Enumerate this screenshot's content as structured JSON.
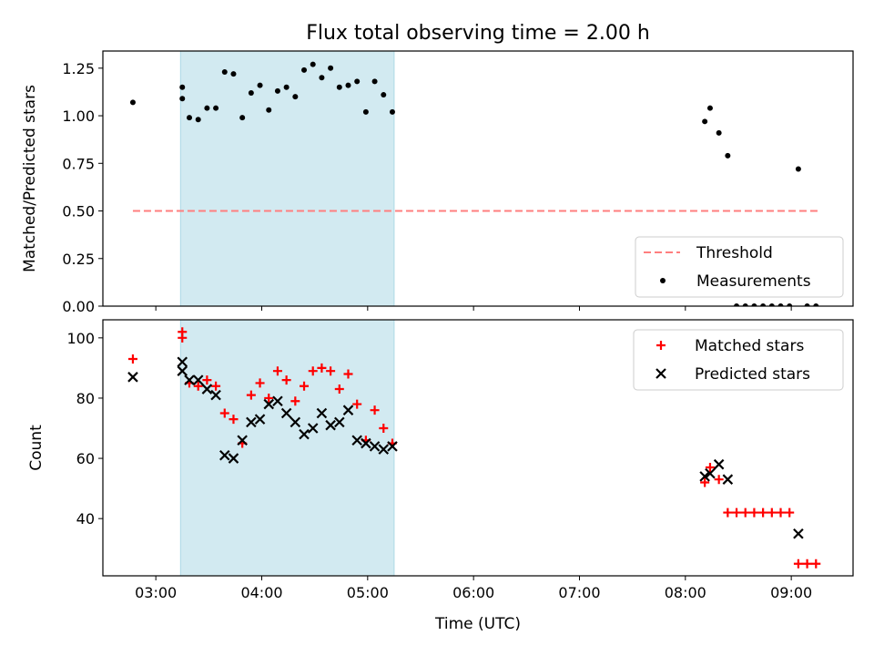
{
  "chart_data": [
    {
      "type": "scatter",
      "title": "Flux total observing time = 2.00 h",
      "xlabel": "",
      "ylabel": "Matched/Predicted stars",
      "xlim": [
        "02:30",
        "09:35"
      ],
      "ylim": [
        0,
        1.34
      ],
      "y_ticks": [
        "0.00",
        "0.25",
        "0.50",
        "0.75",
        "1.00",
        "1.25"
      ],
      "x_ticks": [
        "03:00",
        "04:00",
        "05:00",
        "06:00",
        "07:00",
        "08:00",
        "09:00"
      ],
      "x_tick_labels_visible": false,
      "shaded_interval": {
        "start": "03:14",
        "end": "05:15",
        "color": "#add8e6"
      },
      "legend": {
        "placement": "lower right",
        "entries": [
          "Threshold",
          "Measurements"
        ]
      },
      "series": [
        {
          "name": "Threshold",
          "kind": "dashed-line",
          "color": "#ff7f7f",
          "points": [
            {
              "x": "02:47",
              "y": 0.5
            },
            {
              "x": "09:15",
              "y": 0.5
            }
          ]
        },
        {
          "name": "Measurements",
          "kind": "dot",
          "color": "#000000",
          "points": [
            {
              "x": "02:47",
              "y": 1.07
            },
            {
              "x": "03:15",
              "y": 1.15
            },
            {
              "x": "03:15",
              "y": 1.09
            },
            {
              "x": "03:19",
              "y": 0.99
            },
            {
              "x": "03:24",
              "y": 0.98
            },
            {
              "x": "03:29",
              "y": 1.04
            },
            {
              "x": "03:34",
              "y": 1.04
            },
            {
              "x": "03:39",
              "y": 1.23
            },
            {
              "x": "03:44",
              "y": 1.22
            },
            {
              "x": "03:49",
              "y": 0.99
            },
            {
              "x": "03:54",
              "y": 1.12
            },
            {
              "x": "03:59",
              "y": 1.16
            },
            {
              "x": "04:04",
              "y": 1.03
            },
            {
              "x": "04:09",
              "y": 1.13
            },
            {
              "x": "04:14",
              "y": 1.15
            },
            {
              "x": "04:19",
              "y": 1.1
            },
            {
              "x": "04:24",
              "y": 1.24
            },
            {
              "x": "04:29",
              "y": 1.27
            },
            {
              "x": "04:34",
              "y": 1.2
            },
            {
              "x": "04:39",
              "y": 1.25
            },
            {
              "x": "04:44",
              "y": 1.15
            },
            {
              "x": "04:49",
              "y": 1.16
            },
            {
              "x": "04:54",
              "y": 1.18
            },
            {
              "x": "04:59",
              "y": 1.02
            },
            {
              "x": "05:04",
              "y": 1.18
            },
            {
              "x": "05:09",
              "y": 1.11
            },
            {
              "x": "05:14",
              "y": 1.02
            },
            {
              "x": "08:11",
              "y": 0.97
            },
            {
              "x": "08:14",
              "y": 1.04
            },
            {
              "x": "08:19",
              "y": 0.91
            },
            {
              "x": "08:24",
              "y": 0.79
            },
            {
              "x": "08:29",
              "y": 0.0
            },
            {
              "x": "08:34",
              "y": 0.0
            },
            {
              "x": "08:39",
              "y": 0.0
            },
            {
              "x": "08:44",
              "y": 0.0
            },
            {
              "x": "08:49",
              "y": 0.0
            },
            {
              "x": "08:54",
              "y": 0.0
            },
            {
              "x": "08:59",
              "y": 0.0
            },
            {
              "x": "09:04",
              "y": 0.72
            },
            {
              "x": "09:09",
              "y": 0.0
            },
            {
              "x": "09:14",
              "y": 0.0
            }
          ]
        }
      ]
    },
    {
      "type": "scatter",
      "title": "",
      "xlabel": "Time (UTC)",
      "ylabel": "Count",
      "xlim": [
        "02:30",
        "09:35"
      ],
      "ylim": [
        21,
        106
      ],
      "y_ticks": [
        "40",
        "60",
        "80",
        "100"
      ],
      "x_ticks": [
        "03:00",
        "04:00",
        "05:00",
        "06:00",
        "07:00",
        "08:00",
        "09:00"
      ],
      "shaded_interval": {
        "start": "03:14",
        "end": "05:15",
        "color": "#add8e6"
      },
      "legend": {
        "placement": "upper right",
        "entries": [
          "Matched stars",
          "Predicted stars"
        ]
      },
      "series": [
        {
          "name": "Matched stars",
          "kind": "plus",
          "color": "#ff0000",
          "points": [
            {
              "x": "02:47",
              "y": 93
            },
            {
              "x": "03:15",
              "y": 102
            },
            {
              "x": "03:15",
              "y": 100
            },
            {
              "x": "03:19",
              "y": 85
            },
            {
              "x": "03:24",
              "y": 84
            },
            {
              "x": "03:29",
              "y": 86
            },
            {
              "x": "03:34",
              "y": 84
            },
            {
              "x": "03:39",
              "y": 75
            },
            {
              "x": "03:44",
              "y": 73
            },
            {
              "x": "03:49",
              "y": 65
            },
            {
              "x": "03:54",
              "y": 81
            },
            {
              "x": "03:59",
              "y": 85
            },
            {
              "x": "04:04",
              "y": 80
            },
            {
              "x": "04:09",
              "y": 89
            },
            {
              "x": "04:14",
              "y": 86
            },
            {
              "x": "04:19",
              "y": 79
            },
            {
              "x": "04:24",
              "y": 84
            },
            {
              "x": "04:29",
              "y": 89
            },
            {
              "x": "04:34",
              "y": 90
            },
            {
              "x": "04:39",
              "y": 89
            },
            {
              "x": "04:44",
              "y": 83
            },
            {
              "x": "04:49",
              "y": 88
            },
            {
              "x": "04:54",
              "y": 78
            },
            {
              "x": "04:59",
              "y": 66
            },
            {
              "x": "05:04",
              "y": 76
            },
            {
              "x": "05:09",
              "y": 70
            },
            {
              "x": "05:14",
              "y": 65
            },
            {
              "x": "08:11",
              "y": 52
            },
            {
              "x": "08:14",
              "y": 57
            },
            {
              "x": "08:19",
              "y": 53
            },
            {
              "x": "08:24",
              "y": 42
            },
            {
              "x": "08:29",
              "y": 42
            },
            {
              "x": "08:34",
              "y": 42
            },
            {
              "x": "08:39",
              "y": 42
            },
            {
              "x": "08:44",
              "y": 42
            },
            {
              "x": "08:49",
              "y": 42
            },
            {
              "x": "08:54",
              "y": 42
            },
            {
              "x": "08:59",
              "y": 42
            },
            {
              "x": "09:04",
              "y": 25
            },
            {
              "x": "09:09",
              "y": 25
            },
            {
              "x": "09:14",
              "y": 25
            }
          ]
        },
        {
          "name": "Predicted stars",
          "kind": "x",
          "color": "#000000",
          "points": [
            {
              "x": "02:47",
              "y": 87
            },
            {
              "x": "03:15",
              "y": 92
            },
            {
              "x": "03:15",
              "y": 89
            },
            {
              "x": "03:19",
              "y": 86
            },
            {
              "x": "03:24",
              "y": 86
            },
            {
              "x": "03:29",
              "y": 83
            },
            {
              "x": "03:34",
              "y": 81
            },
            {
              "x": "03:39",
              "y": 61
            },
            {
              "x": "03:44",
              "y": 60
            },
            {
              "x": "03:49",
              "y": 66
            },
            {
              "x": "03:54",
              "y": 72
            },
            {
              "x": "03:59",
              "y": 73
            },
            {
              "x": "04:04",
              "y": 78
            },
            {
              "x": "04:09",
              "y": 79
            },
            {
              "x": "04:14",
              "y": 75
            },
            {
              "x": "04:19",
              "y": 72
            },
            {
              "x": "04:24",
              "y": 68
            },
            {
              "x": "04:29",
              "y": 70
            },
            {
              "x": "04:34",
              "y": 75
            },
            {
              "x": "04:39",
              "y": 71
            },
            {
              "x": "04:44",
              "y": 72
            },
            {
              "x": "04:49",
              "y": 76
            },
            {
              "x": "04:54",
              "y": 66
            },
            {
              "x": "04:59",
              "y": 65
            },
            {
              "x": "05:04",
              "y": 64
            },
            {
              "x": "05:09",
              "y": 63
            },
            {
              "x": "05:14",
              "y": 64
            },
            {
              "x": "08:11",
              "y": 54
            },
            {
              "x": "08:14",
              "y": 55
            },
            {
              "x": "08:19",
              "y": 58
            },
            {
              "x": "08:24",
              "y": 53
            },
            {
              "x": "09:04",
              "y": 35
            }
          ]
        }
      ]
    }
  ]
}
